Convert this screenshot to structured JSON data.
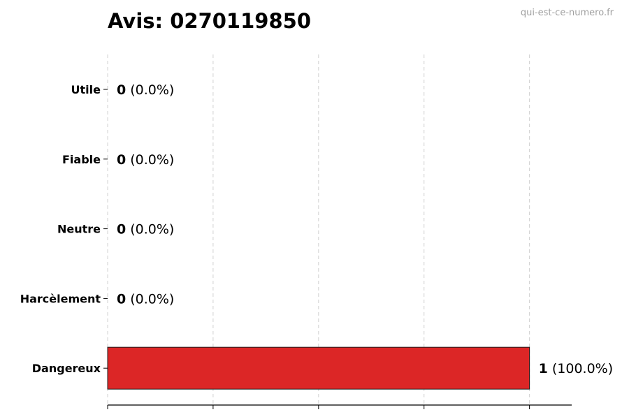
{
  "chart_data": {
    "type": "bar",
    "orientation": "horizontal",
    "title": "Avis: 0270119850",
    "watermark": "qui-est-ce-numero.fr",
    "categories": [
      "Utile",
      "Fiable",
      "Neutre",
      "Harcèlement",
      "Dangereux"
    ],
    "values": [
      0,
      0,
      0,
      0,
      1
    ],
    "percent_labels": [
      "(0.0%)",
      "(0.0%)",
      "(0.0%)",
      "(0.0%)",
      "(100.0%)"
    ],
    "xlim": [
      0,
      1.1
    ],
    "xticks": [
      0,
      0.25,
      0.5,
      0.75,
      1.0
    ],
    "xtick_labels_shown": false,
    "grid": "vertical dashed",
    "bar_color": "#dc2626",
    "bar_edge_color": "#1a1a1a",
    "grid_color": "#d0d0d0"
  }
}
